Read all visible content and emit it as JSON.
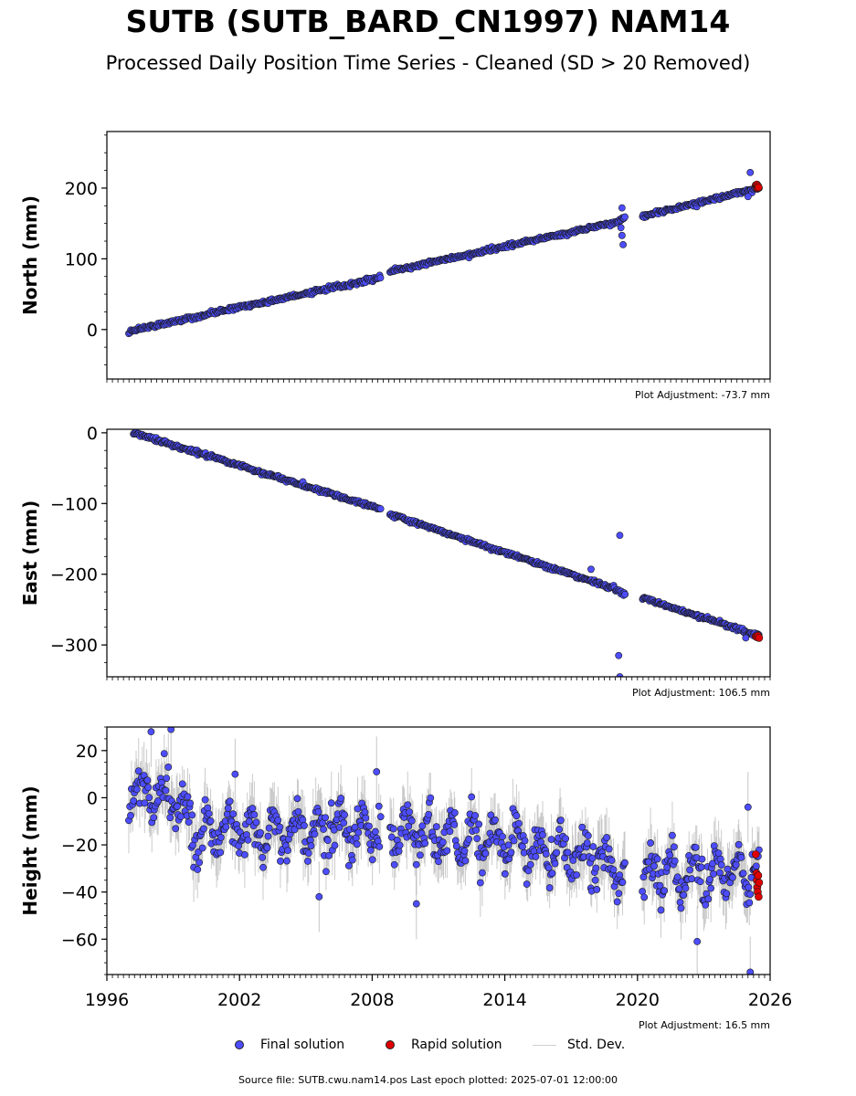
{
  "title": "SUTB (SUTB_BARD_CN1997) NAM14",
  "subtitle": "Processed Daily Position Time Series - Cleaned (SD > 20 Removed)",
  "colors": {
    "final": "#4d4dff",
    "rapid": "#e00000",
    "stddev": "#a0a0a0",
    "marker_edge": "#1a1a1a"
  },
  "legend": {
    "final": "Final solution",
    "rapid": "Rapid solution",
    "stddev": "Std. Dev."
  },
  "footer": "Source file: SUTB.cwu.nam14.pos  Last epoch plotted: 2025-07-01 12:00:00",
  "chart_data": [
    {
      "type": "scatter",
      "ylabel": "North (mm)",
      "xlim": [
        1996,
        2026
      ],
      "ylim": [
        -70,
        280
      ],
      "yticks": [
        0,
        100,
        200
      ],
      "ytick_labels": [
        "0",
        "100",
        "200"
      ],
      "adjustment": "Plot Adjustment: -73.7 mm",
      "show_xtick_labels": false,
      "series": [
        {
          "role": "final",
          "trend": [
            [
              1997.0,
              -2
            ],
            [
              2008.6,
              75
            ],
            [
              2008.8,
              82
            ],
            [
              2019.1,
              152
            ],
            [
              2019.4,
              158
            ],
            [
              2020.3,
              161
            ],
            [
              2025.5,
              200
            ]
          ],
          "noise": 3,
          "gaps": [
            [
              2008.4,
              2008.8
            ],
            [
              2019.45,
              2020.2
            ]
          ],
          "outliers": [
            [
              2019.3,
              172
            ],
            [
              2019.35,
              120
            ],
            [
              2019.3,
              133
            ],
            [
              2019.25,
              144
            ],
            [
              2025.1,
              222
            ],
            [
              2025.0,
              188
            ]
          ]
        },
        {
          "role": "rapid",
          "points": [
            [
              2025.35,
              204
            ],
            [
              2025.38,
              202
            ],
            [
              2025.4,
              205
            ],
            [
              2025.42,
              200
            ],
            [
              2025.45,
              203
            ],
            [
              2025.48,
              201
            ]
          ]
        }
      ]
    },
    {
      "type": "scatter",
      "ylabel": "East (mm)",
      "xlim": [
        1996,
        2026
      ],
      "ylim": [
        -345,
        5
      ],
      "yticks": [
        0,
        -100,
        -200,
        -300
      ],
      "ytick_labels": [
        "0",
        "−100",
        "−200",
        "−300"
      ],
      "adjustment": "Plot Adjustment: 106.5 mm",
      "show_xtick_labels": false,
      "series": [
        {
          "role": "final",
          "trend": [
            [
              1997.2,
              0
            ],
            [
              2008.6,
              -110
            ],
            [
              2008.8,
              -115
            ],
            [
              2019.1,
              -222
            ],
            [
              2019.4,
              -228
            ],
            [
              2020.2,
              -233
            ],
            [
              2025.5,
              -287
            ]
          ],
          "noise": 3,
          "gaps": [
            [
              2008.4,
              2008.8
            ],
            [
              2019.45,
              2020.2
            ]
          ],
          "outliers": [
            [
              2019.2,
              -145
            ],
            [
              2019.15,
              -315
            ],
            [
              2019.2,
              -345
            ],
            [
              2017.9,
              -193
            ],
            [
              2024.9,
              -290
            ]
          ]
        },
        {
          "role": "rapid",
          "points": [
            [
              2025.35,
              -288
            ],
            [
              2025.4,
              -289
            ],
            [
              2025.45,
              -287
            ],
            [
              2025.5,
              -290
            ]
          ]
        }
      ]
    },
    {
      "type": "scatter",
      "ylabel": "Height (mm)",
      "xlim": [
        1996,
        2026
      ],
      "ylim": [
        -75,
        30
      ],
      "yticks": [
        20,
        0,
        -20,
        -40,
        -60
      ],
      "ytick_labels": [
        "20",
        "0",
        "−20",
        "−40",
        "−60"
      ],
      "xticks": [
        1996,
        2002,
        2008,
        2014,
        2020,
        2026
      ],
      "xtick_labels": [
        "1996",
        "2002",
        "2008",
        "2014",
        "2020",
        "2026"
      ],
      "adjustment": "Plot Adjustment: 16.5 mm",
      "show_xtick_labels": true,
      "series": [
        {
          "role": "final",
          "trend": [
            [
              1997.0,
              2
            ],
            [
              1999.0,
              0
            ],
            [
              2000.0,
              -15
            ],
            [
              2008.0,
              -13
            ],
            [
              2014.0,
              -20
            ],
            [
              2016.5,
              -22
            ],
            [
              2019.2,
              -30
            ],
            [
              2020.2,
              -32
            ],
            [
              2025.5,
              -32
            ]
          ],
          "noise": 10,
          "seasonal": 9,
          "gaps": [
            [
              2008.4,
              2008.8
            ],
            [
              2019.45,
              2020.2
            ]
          ],
          "outliers": [
            [
              1998.0,
              28
            ],
            [
              1998.9,
              29
            ],
            [
              2001.8,
              10
            ],
            [
              2010.0,
              -45
            ],
            [
              2005.6,
              -42
            ],
            [
              2022.7,
              -61
            ],
            [
              2025.1,
              -74
            ],
            [
              2008.2,
              11
            ],
            [
              2025.0,
              -4
            ]
          ]
        },
        {
          "role": "rapid",
          "points": [
            [
              2025.35,
              -24
            ],
            [
              2025.38,
              -32
            ],
            [
              2025.4,
              -35
            ],
            [
              2025.42,
              -38
            ],
            [
              2025.44,
              -40
            ],
            [
              2025.46,
              -33
            ],
            [
              2025.48,
              -42
            ],
            [
              2025.5,
              -36
            ]
          ]
        }
      ]
    }
  ]
}
